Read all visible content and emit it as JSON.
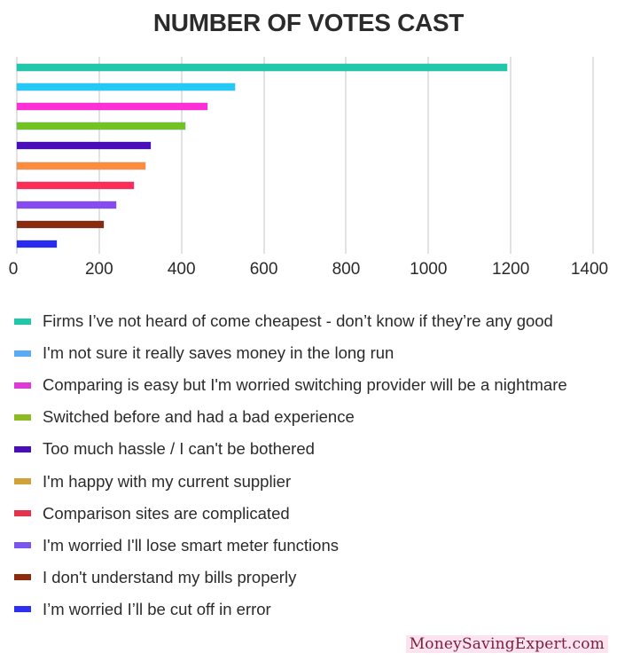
{
  "title": "NUMBER OF VOTES CAST",
  "x_ticks": [
    "0",
    "200",
    "400",
    "600",
    "800",
    "1000",
    "1200",
    "1400"
  ],
  "legend": [
    {
      "label": "Firms I’ve not heard of come cheapest - don’t know if they’re any good",
      "color": "#1fc8a9"
    },
    {
      "label": "I'm not sure it really saves money in the long run",
      "color": "#5aaaf5"
    },
    {
      "label": "Comparing is easy but I'm worried switching provider will be a nightmare",
      "color": "#e03ad6"
    },
    {
      "label": "Switched before and had a bad experience",
      "color": "#8cbb24"
    },
    {
      "label": "Too much hassle / I can't be bothered",
      "color": "#4b0db8"
    },
    {
      "label": "I'm happy with my current supplier",
      "color": "#d1a23c"
    },
    {
      "label": "Comparison sites are complicated",
      "color": "#e2344f"
    },
    {
      "label": "I'm worried I'll lose smart meter functions",
      "color": "#7b55f0"
    },
    {
      "label": "I don't understand my bills properly",
      "color": "#8b2a0c"
    },
    {
      "label": "I’m worried I’ll be cut off in error",
      "color": "#2e2ff0"
    }
  ],
  "watermark": "MoneySavingExpert.com",
  "chart_data": {
    "type": "bar",
    "orientation": "horizontal",
    "title": "NUMBER OF VOTES CAST",
    "xlabel": "",
    "ylabel": "",
    "xlim": [
      0,
      1400
    ],
    "x_ticks": [
      0,
      200,
      400,
      600,
      800,
      1000,
      1200,
      1400
    ],
    "grid": true,
    "legend_position": "bottom",
    "categories": [
      "Firms I’ve not heard of come cheapest - don’t know if they’re any good",
      "I'm not sure it really saves money in the long run",
      "Comparing is easy but I'm worried switching provider will be a nightmare",
      "Switched before and had a bad experience",
      "Too much hassle / I can't be bothered",
      "I'm happy with my current supplier",
      "Comparison sites are complicated",
      "I'm worried I'll lose smart meter functions",
      "I don't understand my bills properly",
      "I’m worried I’ll be cut off in error"
    ],
    "values": [
      1190,
      530,
      463,
      410,
      326,
      312,
      284,
      241,
      210,
      96
    ],
    "bar_colors": [
      "#1fc8a9",
      "#25c9f5",
      "#ff2fd6",
      "#73c224",
      "#4b0db8",
      "#ff8c3a",
      "#ff2c55",
      "#8a48f0",
      "#8b2a0c",
      "#2a2af2"
    ]
  }
}
